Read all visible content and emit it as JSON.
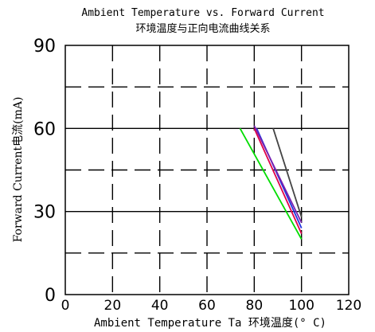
{
  "chart_data": {
    "type": "line",
    "title": "Ambient Temperature vs. Forward Current",
    "subtitle": "环境温度与正向电流曲线关系",
    "xlabel": "Ambient Temperature Ta 环境温度(° C)",
    "ylabel": "Forward Current电流(mA)",
    "xlim": [
      0,
      120
    ],
    "ylim": [
      0,
      90
    ],
    "x_ticks": [
      "0",
      "20",
      "40",
      "60",
      "80",
      "100",
      "120"
    ],
    "y_ticks": [
      "0",
      "30",
      "60",
      "90"
    ],
    "grid": true,
    "series": [
      {
        "color": "#00dd00",
        "x": [
          74,
          100
        ],
        "y": [
          60,
          20
        ]
      },
      {
        "color": "#e0004a",
        "x": [
          80,
          100
        ],
        "y": [
          60,
          22
        ]
      },
      {
        "color": "#2233dd",
        "x": [
          81,
          100
        ],
        "y": [
          60,
          24
        ]
      },
      {
        "color": "#7a1fb0",
        "x": [
          80,
          100
        ],
        "y": [
          61,
          26
        ]
      },
      {
        "color": "#444444",
        "x": [
          88,
          100
        ],
        "y": [
          60,
          28
        ]
      }
    ]
  }
}
